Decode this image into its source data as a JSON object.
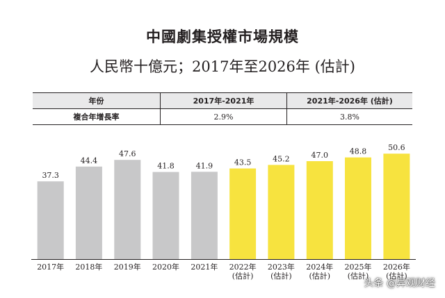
{
  "title": "中國劇集授權市場規模",
  "subtitle": "人民幣十億元；2017年至2026年 (估計)",
  "cagr_table": {
    "header": {
      "label": "年份",
      "period_1": "2017年-2021年",
      "period_2": "2021年-2026年 (估計)"
    },
    "row": {
      "label": "複合年增長率",
      "value_1": "2.9%",
      "value_2": "3.8%"
    }
  },
  "chart_data": {
    "type": "bar",
    "title": "中國劇集授權市場規模",
    "subtitle": "人民幣十億元；2017年至2026年 (估計)",
    "categories": [
      "2017年",
      "2018年",
      "2019年",
      "2020年",
      "2021年",
      "2022年\n(估計)",
      "2023年\n(估計)",
      "2024年\n(估計)",
      "2025年\n(估計)",
      "2026年\n(估計)"
    ],
    "values": [
      37.3,
      44.4,
      47.6,
      41.8,
      41.9,
      43.5,
      45.2,
      47.0,
      48.8,
      50.6
    ],
    "bar_colors": [
      "#c8c8c9",
      "#c8c8c9",
      "#c8c8c9",
      "#c8c8c9",
      "#c8c8c9",
      "#f7e33f",
      "#f7e33f",
      "#f7e33f",
      "#f7e33f",
      "#f7e33f"
    ],
    "ylim": [
      0,
      62
    ],
    "grid": false,
    "xlabel": "",
    "ylabel": ""
  },
  "watermark": "头条 @异观财经"
}
